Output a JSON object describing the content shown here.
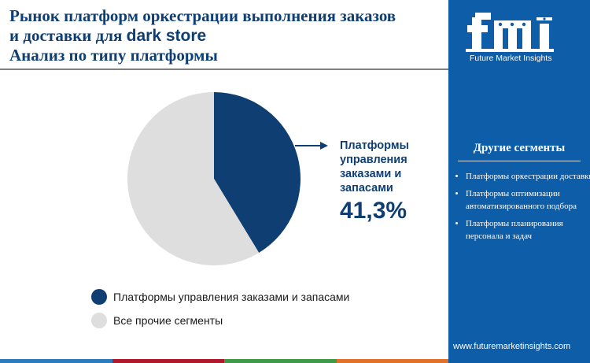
{
  "header": {
    "title_line1": "Рынок платформ оркестрации выполнения заказов",
    "title_line2_prefix": "и доставки для ",
    "title_line2_suffix": "dark store",
    "title_line3": "Анализ по типу платформы"
  },
  "chart_data": {
    "type": "pie",
    "categories": [
      "Платформы управления заказами и запасами",
      "Все прочие сегменты"
    ],
    "values": [
      41.3,
      58.7
    ],
    "colors": [
      "#0f3e73",
      "#dedede"
    ],
    "legend": "bottom-left"
  },
  "callout": {
    "label_lines": [
      "Платформы",
      "управления",
      "заказами и",
      "запасами"
    ],
    "value": "41,3%"
  },
  "legend_items": [
    {
      "label": "Платформы управления заказами и запасами",
      "color": "#0f3e73"
    },
    {
      "label": "Все прочие сегменты",
      "color": "#dedede"
    }
  ],
  "sidebar": {
    "logo_text": "Future Market Insights",
    "segments_title": "Другие сегменты",
    "segments": [
      "Платформы оркестрации доставки",
      "Платформы оптимизации автоматизированного подбора",
      "Платформы планирования персонала и задач"
    ],
    "footer_url": "www.futuremarketinsights.com"
  },
  "colors": {
    "accent_navy": "#0f3e73",
    "sidebar_blue": "#0d5da8",
    "pie_other": "#dedede",
    "bottom_bar": [
      "#2b7bbd",
      "#b0182c",
      "#3e9a46",
      "#e0702a"
    ]
  },
  "icons": [
    "logo-mark"
  ]
}
